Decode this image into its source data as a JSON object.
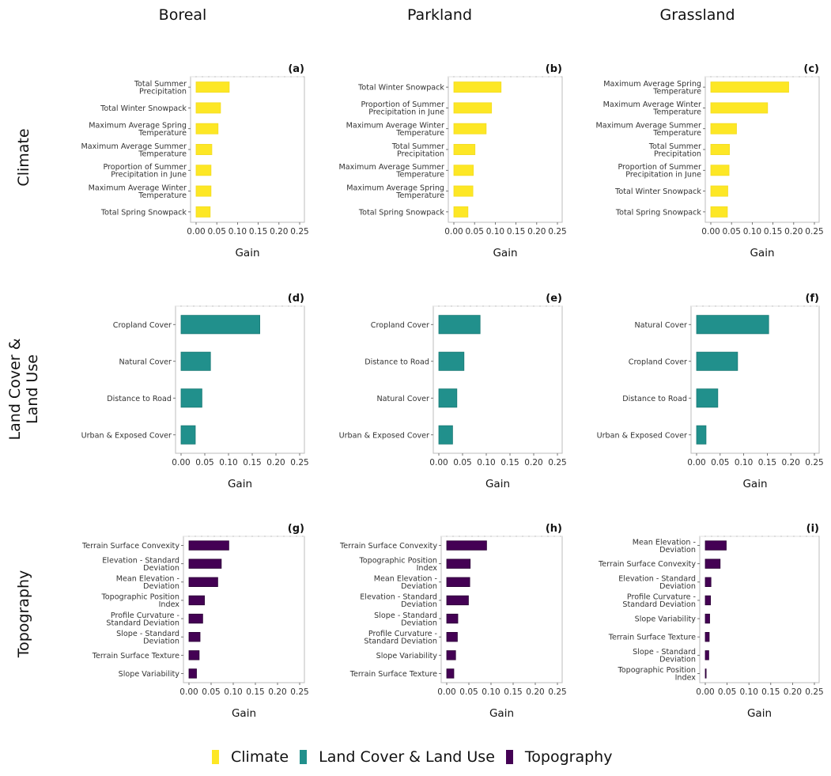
{
  "column_titles": [
    "Boreal",
    "Parkland",
    "Grassland"
  ],
  "row_titles": [
    "Climate",
    "Land Cover &\nLand Use",
    "Topography"
  ],
  "legend": [
    {
      "label": "Climate",
      "color": "#FDE725"
    },
    {
      "label": "Land Cover & Land Use",
      "color": "#21908C"
    },
    {
      "label": "Topography",
      "color": "#440154"
    }
  ],
  "chart_data": [
    {
      "type": "bar",
      "orientation": "horizontal",
      "panel": "(a)",
      "region": "Boreal",
      "group": "Climate",
      "xlabel": "Gain",
      "xlim": [
        0,
        0.25
      ],
      "xticks": [
        "0.00",
        "0.05",
        "0.10",
        "0.15",
        "0.20",
        "0.25"
      ],
      "color": "#FDE725",
      "categories": [
        "Total Summer\nPrecipitation",
        "Total Winter Snowpack",
        "Maximum Average Spring\nTemperature",
        "Maximum Average Summer\nTemperature",
        "Proportion of Summer\nPrecipitation in June",
        "Maximum Average Winter\nTemperature",
        "Total Spring Snowpack"
      ],
      "values": [
        0.08,
        0.059,
        0.053,
        0.038,
        0.036,
        0.036,
        0.034
      ]
    },
    {
      "type": "bar",
      "orientation": "horizontal",
      "panel": "(b)",
      "region": "Parkland",
      "group": "Climate",
      "xlabel": "Gain",
      "xlim": [
        0,
        0.25
      ],
      "xticks": [
        "0.00",
        "0.05",
        "0.10",
        "0.15",
        "0.20",
        "0.25"
      ],
      "color": "#FDE725",
      "categories": [
        "Total Winter Snowpack",
        "Proportion of Summer\nPrecipitation in June",
        "Maximum Average Winter\nTemperature",
        "Total Summer\nPrecipitation",
        "Maximum Average Summer\nTemperature",
        "Maximum Average Spring\nTemperature",
        "Total Spring Snowpack"
      ],
      "values": [
        0.114,
        0.091,
        0.078,
        0.051,
        0.047,
        0.046,
        0.034
      ]
    },
    {
      "type": "bar",
      "orientation": "horizontal",
      "panel": "(c)",
      "region": "Grassland",
      "group": "Climate",
      "xlabel": "Gain",
      "xlim": [
        0,
        0.25
      ],
      "xticks": [
        "0.00",
        "0.05",
        "0.10",
        "0.15",
        "0.20",
        "0.25"
      ],
      "color": "#FDE725",
      "categories": [
        "Maximum Average Spring\nTemperature",
        "Maximum Average Winter\nTemperature",
        "Maximum Average Summer\nTemperature",
        "Total Summer\nPrecipitation",
        "Proportion of Summer\nPrecipitation in June",
        "Total Winter Snowpack",
        "Total Spring Snowpack"
      ],
      "values": [
        0.188,
        0.137,
        0.062,
        0.045,
        0.044,
        0.041,
        0.04
      ]
    },
    {
      "type": "bar",
      "orientation": "horizontal",
      "panel": "(d)",
      "region": "Boreal",
      "group": "Land Cover & Land Use",
      "xlabel": "Gain",
      "xlim": [
        0,
        0.25
      ],
      "xticks": [
        "0.00",
        "0.05",
        "0.10",
        "0.15",
        "0.20",
        "0.25"
      ],
      "color": "#21908C",
      "categories": [
        "Cropland Cover",
        "Natural Cover",
        "Distance to Road",
        "Urban & Exposed Cover"
      ],
      "values": [
        0.166,
        0.062,
        0.044,
        0.03
      ]
    },
    {
      "type": "bar",
      "orientation": "horizontal",
      "panel": "(e)",
      "region": "Parkland",
      "group": "Land Cover & Land Use",
      "xlabel": "Gain",
      "xlim": [
        0,
        0.25
      ],
      "xticks": [
        "0.00",
        "0.05",
        "0.10",
        "0.15",
        "0.20",
        "0.25"
      ],
      "color": "#21908C",
      "categories": [
        "Cropland Cover",
        "Distance to Road",
        "Natural Cover",
        "Urban & Exposed Cover"
      ],
      "values": [
        0.087,
        0.053,
        0.038,
        0.029
      ]
    },
    {
      "type": "bar",
      "orientation": "horizontal",
      "panel": "(f)",
      "region": "Grassland",
      "group": "Land Cover & Land Use",
      "xlabel": "Gain",
      "xlim": [
        0,
        0.25
      ],
      "xticks": [
        "0.00",
        "0.05",
        "0.10",
        "0.15",
        "0.20",
        "0.25"
      ],
      "color": "#21908C",
      "categories": [
        "Natural Cover",
        "Cropland Cover",
        "Distance to Road",
        "Urban & Exposed Cover"
      ],
      "values": [
        0.153,
        0.087,
        0.045,
        0.02
      ]
    },
    {
      "type": "bar",
      "orientation": "horizontal",
      "panel": "(g)",
      "region": "Boreal",
      "group": "Topography",
      "xlabel": "Gain",
      "xlim": [
        0,
        0.25
      ],
      "xticks": [
        "0.00",
        "0.05",
        "0.10",
        "0.15",
        "0.20",
        "0.25"
      ],
      "color": "#440154",
      "categories": [
        "Terrain Surface Convexity",
        "Elevation - Standard\nDeviation",
        "Mean Elevation -\nDeviation",
        "Topographic Position\nIndex",
        "Profile Curvature -\nStandard Deviation",
        "Slope - Standard\nDeviation",
        "Terrain Surface Texture",
        "Slope Variability"
      ],
      "values": [
        0.09,
        0.073,
        0.065,
        0.035,
        0.031,
        0.025,
        0.023,
        0.017
      ]
    },
    {
      "type": "bar",
      "orientation": "horizontal",
      "panel": "(h)",
      "region": "Parkland",
      "group": "Topography",
      "xlabel": "Gain",
      "xlim": [
        0,
        0.25
      ],
      "xticks": [
        "0.00",
        "0.05",
        "0.10",
        "0.15",
        "0.20",
        "0.25"
      ],
      "color": "#440154",
      "categories": [
        "Terrain Surface Convexity",
        "Topographic Position\nIndex",
        "Mean Elevation -\nDeviation",
        "Elevation - Standard\nDeviation",
        "Slope - Standard\nDeviation",
        "Profile Curvature -\nStandard Deviation",
        "Slope Variability",
        "Terrain Surface Texture"
      ],
      "values": [
        0.09,
        0.053,
        0.052,
        0.049,
        0.025,
        0.024,
        0.02,
        0.016
      ]
    },
    {
      "type": "bar",
      "orientation": "horizontal",
      "panel": "(i)",
      "region": "Grassland",
      "group": "Topography",
      "xlabel": "Gain",
      "xlim": [
        0,
        0.25
      ],
      "xticks": [
        "0.00",
        "0.05",
        "0.10",
        "0.15",
        "0.20",
        "0.25"
      ],
      "color": "#440154",
      "categories": [
        "Mean Elevation -\nDeviation",
        "Terrain Surface Convexity",
        "Elevation - Standard\nDeviation",
        "Profile Curvature -\nStandard Deviation",
        "Slope Variability",
        "Terrain Surface Texture",
        "Slope - Standard\nDeviation",
        "Topographic Position\nIndex"
      ],
      "values": [
        0.048,
        0.034,
        0.013,
        0.012,
        0.01,
        0.009,
        0.008,
        0.002
      ]
    }
  ]
}
